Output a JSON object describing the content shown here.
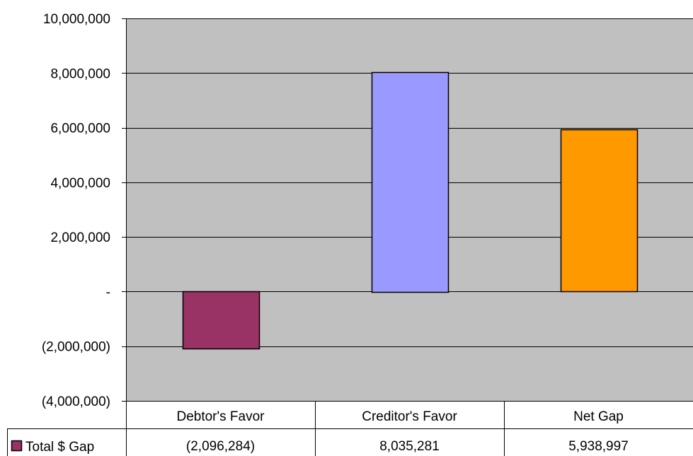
{
  "chart_data": {
    "type": "bar",
    "categories": [
      "Debtor's Favor",
      "Creditor's Favor",
      "Net Gap"
    ],
    "series": [
      {
        "name": "Total $ Gap",
        "values": [
          -2096284,
          8035281,
          5938997
        ],
        "value_labels": [
          "(2,096,284)",
          "8,035,281",
          "5,938,997"
        ],
        "colors": [
          "#993366",
          "#9999ff",
          "#ff9900"
        ]
      }
    ],
    "ylim": [
      -4000000,
      10000000
    ],
    "yticks": [
      -4000000,
      -2000000,
      0,
      2000000,
      4000000,
      6000000,
      8000000,
      10000000
    ],
    "ytick_labels": [
      "(4,000,000)",
      "(2,000,000)",
      "-",
      "2,000,000",
      "4,000,000",
      "6,000,000",
      "8,000,000",
      "10,000,000"
    ],
    "plot_background": "#c0c0c0",
    "grid": true,
    "legend": "data-table",
    "title": "",
    "xlabel": "",
    "ylabel": ""
  }
}
